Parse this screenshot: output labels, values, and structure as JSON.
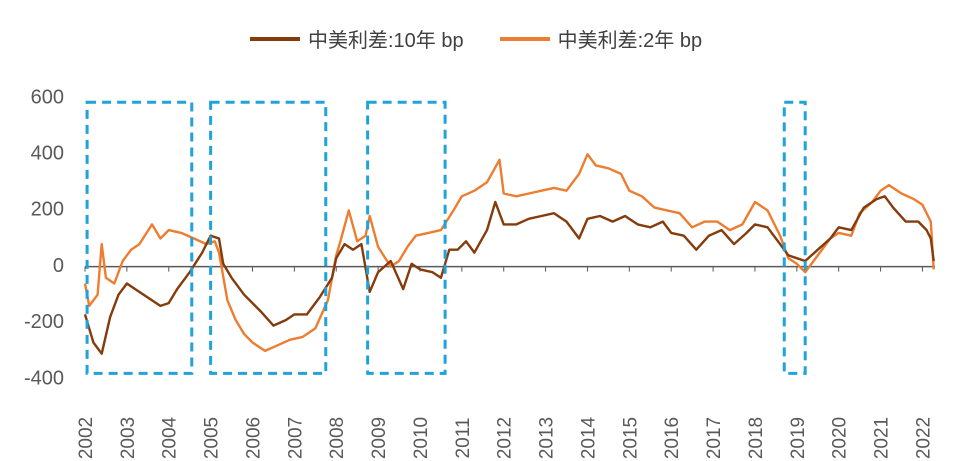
{
  "chart_data": {
    "type": "line",
    "title": "",
    "xlabel": "",
    "ylabel": "",
    "ylim": [
      -400,
      600
    ],
    "yticks": [
      -400,
      -200,
      0,
      200,
      400,
      600
    ],
    "ytick_labels": [
      "-400",
      "-200",
      "0",
      "200",
      "400",
      "600"
    ],
    "xlim": [
      2002,
      2022.3
    ],
    "xticks": [
      2002,
      2003,
      2004,
      2005,
      2006,
      2007,
      2008,
      2009,
      2010,
      2011,
      2012,
      2013,
      2014,
      2015,
      2016,
      2017,
      2018,
      2019,
      2020,
      2021,
      2022
    ],
    "xtick_labels": [
      "2002",
      "2003",
      "2004",
      "2005",
      "2006",
      "2007",
      "2008",
      "2009",
      "2010",
      "2011",
      "2012",
      "2013",
      "2014",
      "2015",
      "2016",
      "2017",
      "2018",
      "2019",
      "2020",
      "2021",
      "2022"
    ],
    "legend_position": "top-center",
    "series": [
      {
        "name": "中美利差:10年 bp",
        "color": "#843C0C",
        "points": [
          [
            2002.0,
            -170
          ],
          [
            2002.2,
            -270
          ],
          [
            2002.4,
            -310
          ],
          [
            2002.6,
            -180
          ],
          [
            2002.8,
            -100
          ],
          [
            2003.0,
            -60
          ],
          [
            2003.2,
            -80
          ],
          [
            2003.5,
            -110
          ],
          [
            2003.8,
            -140
          ],
          [
            2004.0,
            -130
          ],
          [
            2004.2,
            -80
          ],
          [
            2004.5,
            -20
          ],
          [
            2004.8,
            50
          ],
          [
            2005.0,
            110
          ],
          [
            2005.2,
            100
          ],
          [
            2005.3,
            10
          ],
          [
            2005.5,
            -40
          ],
          [
            2005.8,
            -100
          ],
          [
            2006.0,
            -130
          ],
          [
            2006.2,
            -160
          ],
          [
            2006.5,
            -210
          ],
          [
            2006.8,
            -190
          ],
          [
            2007.0,
            -170
          ],
          [
            2007.3,
            -170
          ],
          [
            2007.6,
            -110
          ],
          [
            2007.9,
            -40
          ],
          [
            2008.0,
            30
          ],
          [
            2008.2,
            80
          ],
          [
            2008.4,
            60
          ],
          [
            2008.6,
            80
          ],
          [
            2008.8,
            -90
          ],
          [
            2009.0,
            -20
          ],
          [
            2009.3,
            20
          ],
          [
            2009.6,
            -80
          ],
          [
            2009.8,
            10
          ],
          [
            2010.0,
            -10
          ],
          [
            2010.3,
            -20
          ],
          [
            2010.5,
            -40
          ],
          [
            2010.7,
            60
          ],
          [
            2010.9,
            60
          ],
          [
            2011.1,
            90
          ],
          [
            2011.3,
            50
          ],
          [
            2011.6,
            130
          ],
          [
            2011.8,
            230
          ],
          [
            2012.0,
            150
          ],
          [
            2012.3,
            150
          ],
          [
            2012.6,
            170
          ],
          [
            2012.9,
            180
          ],
          [
            2013.2,
            190
          ],
          [
            2013.5,
            160
          ],
          [
            2013.8,
            100
          ],
          [
            2014.0,
            170
          ],
          [
            2014.3,
            180
          ],
          [
            2014.6,
            160
          ],
          [
            2014.9,
            180
          ],
          [
            2015.2,
            150
          ],
          [
            2015.5,
            140
          ],
          [
            2015.8,
            160
          ],
          [
            2016.0,
            120
          ],
          [
            2016.3,
            110
          ],
          [
            2016.6,
            60
          ],
          [
            2016.9,
            110
          ],
          [
            2017.2,
            130
          ],
          [
            2017.5,
            80
          ],
          [
            2017.8,
            120
          ],
          [
            2018.0,
            150
          ],
          [
            2018.3,
            140
          ],
          [
            2018.6,
            80
          ],
          [
            2018.8,
            40
          ],
          [
            2019.0,
            30
          ],
          [
            2019.2,
            20
          ],
          [
            2019.5,
            60
          ],
          [
            2019.8,
            100
          ],
          [
            2020.0,
            140
          ],
          [
            2020.3,
            130
          ],
          [
            2020.6,
            210
          ],
          [
            2020.9,
            240
          ],
          [
            2021.1,
            250
          ],
          [
            2021.3,
            210
          ],
          [
            2021.6,
            160
          ],
          [
            2021.9,
            160
          ],
          [
            2022.1,
            130
          ],
          [
            2022.2,
            100
          ],
          [
            2022.27,
            20
          ]
        ]
      },
      {
        "name": "中美利差:2年 bp",
        "color": "#ED7D31",
        "points": [
          [
            2002.0,
            -60
          ],
          [
            2002.1,
            -140
          ],
          [
            2002.3,
            -100
          ],
          [
            2002.4,
            80
          ],
          [
            2002.5,
            -40
          ],
          [
            2002.7,
            -60
          ],
          [
            2002.9,
            20
          ],
          [
            2003.1,
            60
          ],
          [
            2003.3,
            80
          ],
          [
            2003.6,
            150
          ],
          [
            2003.8,
            100
          ],
          [
            2004.0,
            130
          ],
          [
            2004.3,
            120
          ],
          [
            2004.6,
            100
          ],
          [
            2004.9,
            80
          ],
          [
            2005.1,
            90
          ],
          [
            2005.2,
            50
          ],
          [
            2005.4,
            -120
          ],
          [
            2005.6,
            -190
          ],
          [
            2005.8,
            -240
          ],
          [
            2006.0,
            -270
          ],
          [
            2006.3,
            -300
          ],
          [
            2006.6,
            -280
          ],
          [
            2006.9,
            -260
          ],
          [
            2007.2,
            -250
          ],
          [
            2007.5,
            -220
          ],
          [
            2007.8,
            -120
          ],
          [
            2008.0,
            40
          ],
          [
            2008.1,
            90
          ],
          [
            2008.3,
            200
          ],
          [
            2008.5,
            90
          ],
          [
            2008.7,
            110
          ],
          [
            2008.8,
            180
          ],
          [
            2009.0,
            70
          ],
          [
            2009.3,
            0
          ],
          [
            2009.5,
            20
          ],
          [
            2009.7,
            70
          ],
          [
            2009.9,
            110
          ],
          [
            2010.2,
            120
          ],
          [
            2010.5,
            130
          ],
          [
            2010.8,
            200
          ],
          [
            2011.0,
            250
          ],
          [
            2011.3,
            270
          ],
          [
            2011.6,
            300
          ],
          [
            2011.9,
            380
          ],
          [
            2012.0,
            260
          ],
          [
            2012.3,
            250
          ],
          [
            2012.6,
            260
          ],
          [
            2012.9,
            270
          ],
          [
            2013.2,
            280
          ],
          [
            2013.5,
            270
          ],
          [
            2013.8,
            330
          ],
          [
            2014.0,
            400
          ],
          [
            2014.2,
            360
          ],
          [
            2014.5,
            350
          ],
          [
            2014.8,
            330
          ],
          [
            2015.0,
            270
          ],
          [
            2015.3,
            250
          ],
          [
            2015.6,
            210
          ],
          [
            2015.9,
            200
          ],
          [
            2016.2,
            190
          ],
          [
            2016.5,
            140
          ],
          [
            2016.8,
            160
          ],
          [
            2017.1,
            160
          ],
          [
            2017.4,
            130
          ],
          [
            2017.7,
            150
          ],
          [
            2018.0,
            230
          ],
          [
            2018.3,
            200
          ],
          [
            2018.6,
            110
          ],
          [
            2018.8,
            30
          ],
          [
            2019.0,
            10
          ],
          [
            2019.2,
            -20
          ],
          [
            2019.5,
            40
          ],
          [
            2019.8,
            100
          ],
          [
            2020.0,
            120
          ],
          [
            2020.3,
            110
          ],
          [
            2020.5,
            190
          ],
          [
            2020.8,
            230
          ],
          [
            2021.0,
            270
          ],
          [
            2021.2,
            290
          ],
          [
            2021.5,
            260
          ],
          [
            2021.8,
            240
          ],
          [
            2022.0,
            220
          ],
          [
            2022.2,
            160
          ],
          [
            2022.27,
            -10
          ]
        ]
      }
    ],
    "highlight_boxes": [
      {
        "x0": 2002.05,
        "x1": 2004.55,
        "y0": -380,
        "y1": 585
      },
      {
        "x0": 2005.0,
        "x1": 2007.75,
        "y0": -380,
        "y1": 585
      },
      {
        "x0": 2008.75,
        "x1": 2010.6,
        "y0": -380,
        "y1": 585
      },
      {
        "x0": 2018.7,
        "x1": 2019.2,
        "y0": -380,
        "y1": 585
      }
    ],
    "highlight_color": "#1FA3DA"
  }
}
